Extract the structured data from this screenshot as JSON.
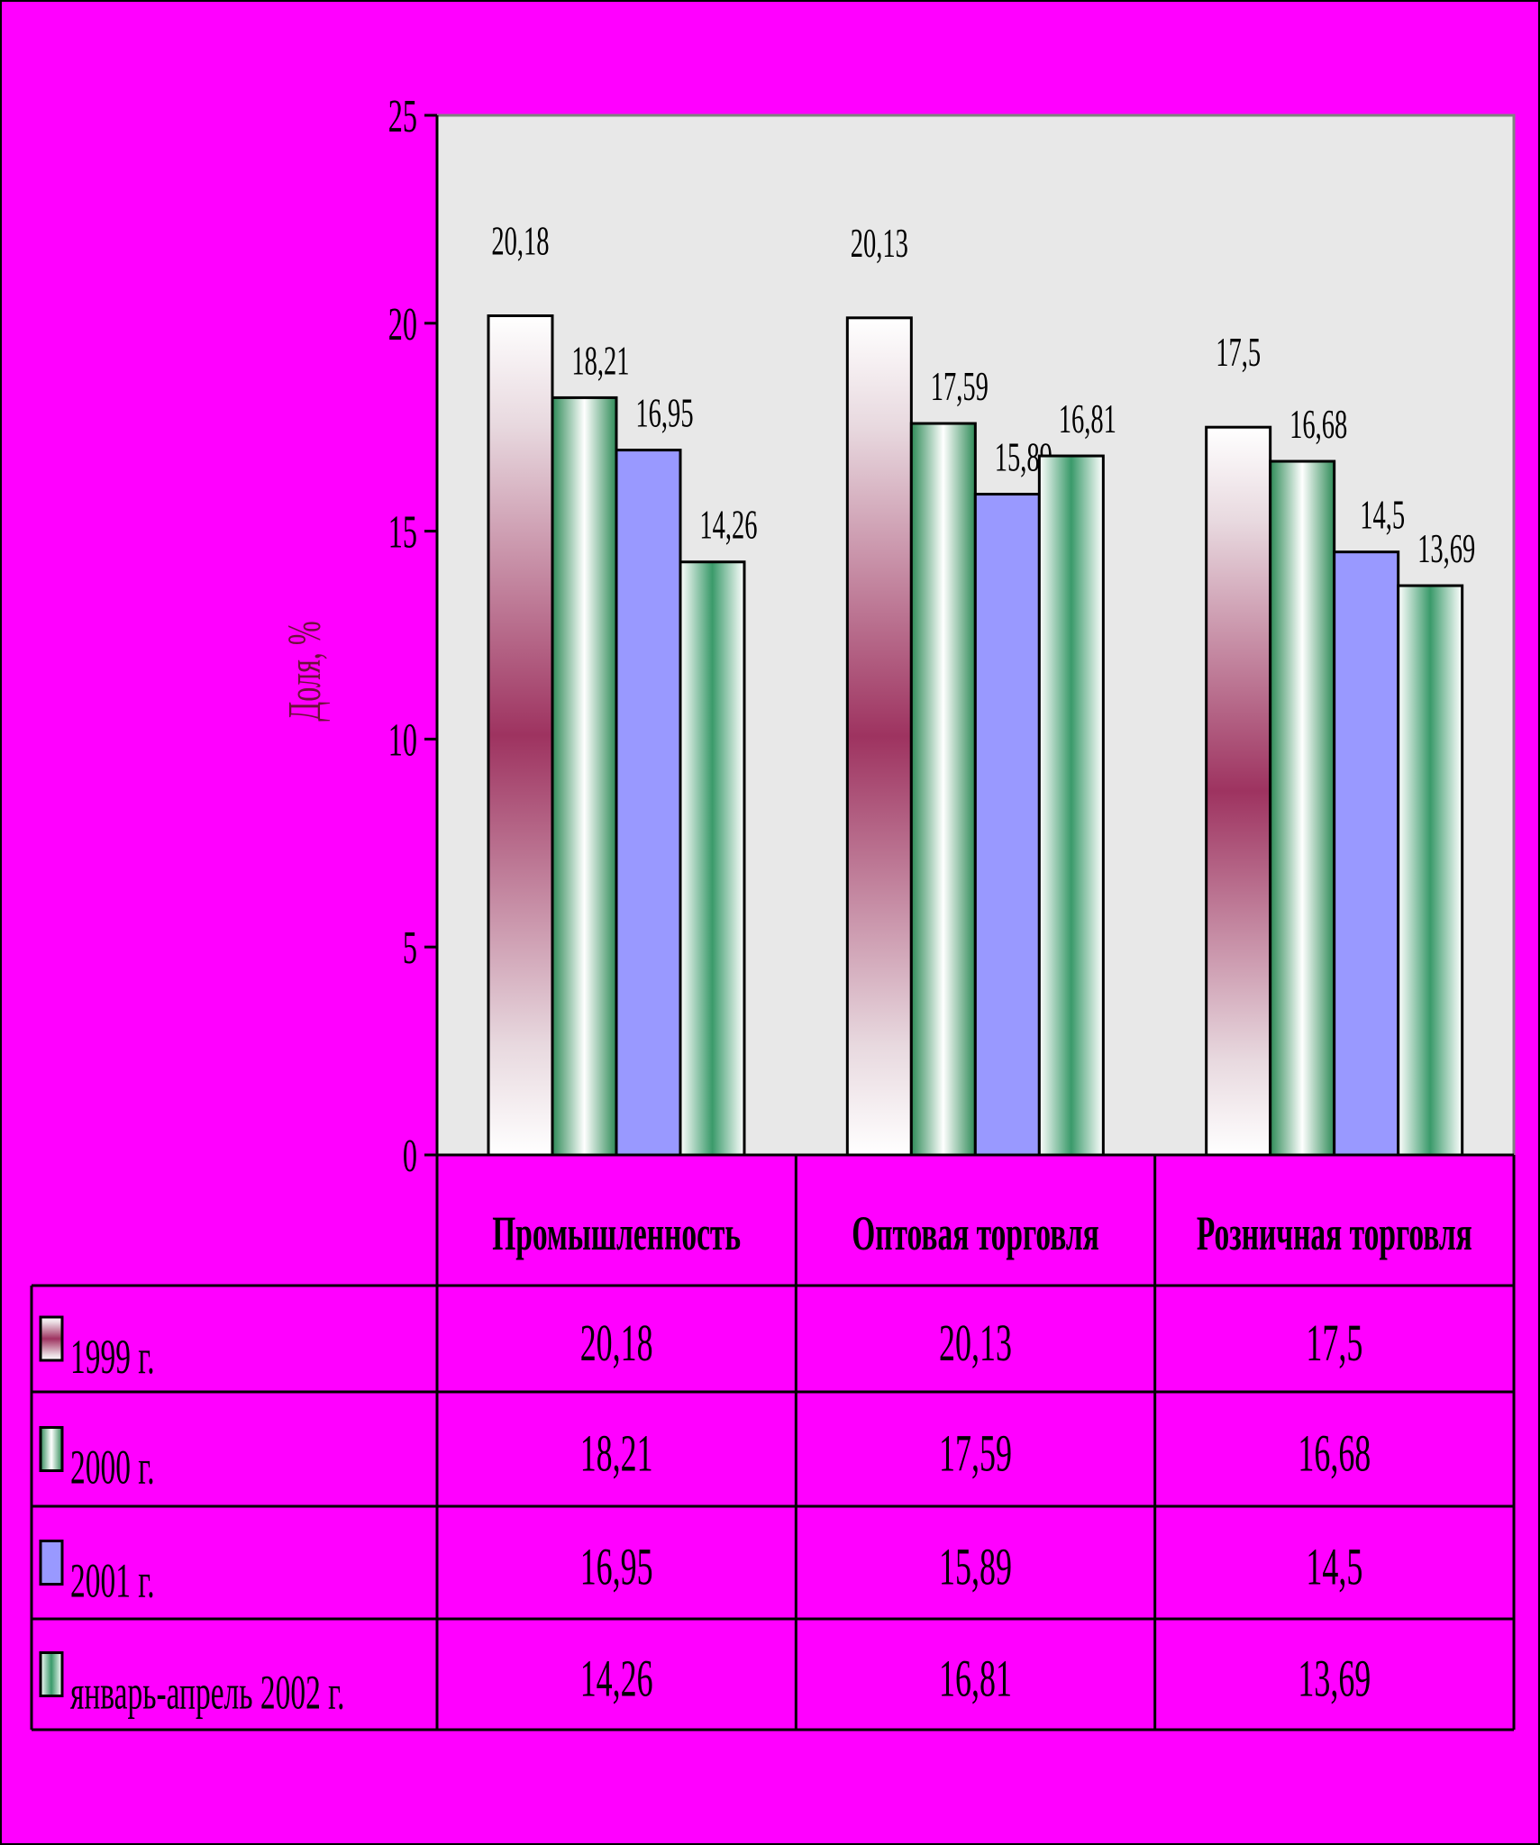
{
  "chart_data": {
    "type": "bar",
    "title": "",
    "xlabel": "",
    "ylabel": "Доля, %",
    "ylim": [
      0,
      25
    ],
    "yticks": [
      "0",
      "5",
      "10",
      "15",
      "20",
      "25"
    ],
    "categories": [
      "Промышленность",
      "Оптовая торговля",
      "Розничная торговля"
    ],
    "series": [
      {
        "name": "1999 г.",
        "values": [
          20.18,
          20.13,
          17.5
        ],
        "labels": [
          "20,18",
          "20,13",
          "17,5"
        ]
      },
      {
        "name": "2000 г.",
        "values": [
          18.21,
          17.59,
          16.68
        ],
        "labels": [
          "18,21",
          "17,59",
          "16,68"
        ]
      },
      {
        "name": "2001 г.",
        "values": [
          16.95,
          15.89,
          14.5
        ],
        "labels": [
          "16,95",
          "15,89",
          "14,5"
        ]
      },
      {
        "name": "январь-апрель 2002 г.",
        "values": [
          14.26,
          16.81,
          13.69
        ],
        "labels": [
          "14,26",
          "16,81",
          "13,69"
        ]
      }
    ],
    "grid": false,
    "legend": "data-table",
    "colors": {
      "background": "#ff00ff",
      "plot_area": "#e8e8e8",
      "series_1999": "#9e3360",
      "series_2000": "#2e8b57",
      "series_2001": "#9999ff",
      "series_2002": "#3a9a6a"
    }
  }
}
